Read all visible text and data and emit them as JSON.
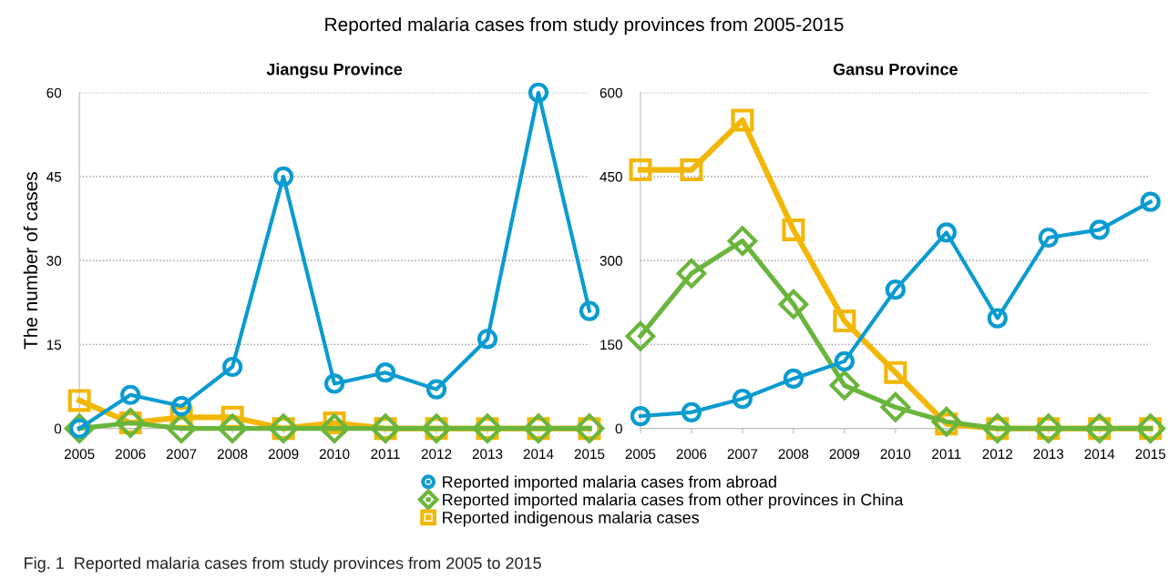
{
  "chart_data": [
    {
      "type": "line",
      "title": "Jiangsu Province",
      "ylabel": "The number of cases",
      "categories": [
        "2005",
        "2006",
        "2007",
        "2008",
        "2009",
        "2010",
        "2011",
        "2012",
        "2013",
        "2014",
        "2015"
      ],
      "ylim": [
        0,
        60
      ],
      "yticks": [
        0,
        15,
        30,
        45,
        60
      ],
      "grid": "y",
      "legend": "bottom",
      "line_style": "solid",
      "annotations": [
        "Reported malaria cases from study provinces from 2005-2015",
        "Fig. 1  Reported malaria cases from study provinces from 2005 to 2015"
      ],
      "series": [
        {
          "name": "Reported imported malaria cases from abroad",
          "color": "#0a9bd0",
          "marker": "circle",
          "values": [
            0,
            6,
            4,
            11,
            45,
            8,
            10,
            7,
            16,
            60,
            21
          ]
        },
        {
          "name": "Reported imported malaria cases from other provinces in China",
          "color": "#6ab53c",
          "marker": "diamond",
          "values": [
            0,
            1,
            0,
            0,
            0,
            0,
            0,
            0,
            0,
            0,
            0
          ]
        },
        {
          "name": "Reported indigenous malaria cases",
          "color": "#f2b705",
          "marker": "square",
          "values": [
            5,
            1,
            2,
            2,
            0,
            1,
            0,
            0,
            0,
            0,
            0
          ]
        }
      ]
    },
    {
      "type": "line",
      "title": "Gansu Province",
      "categories": [
        "2005",
        "2006",
        "2007",
        "2008",
        "2009",
        "2010",
        "2011",
        "2012",
        "2013",
        "2014",
        "2015"
      ],
      "ylim": [
        0,
        600
      ],
      "yticks": [
        0,
        150,
        300,
        450,
        600
      ],
      "grid": "y",
      "legend": "bottom",
      "line_style": "solid",
      "series": [
        {
          "name": "Reported imported malaria cases from abroad",
          "color": "#0a9bd0",
          "marker": "circle",
          "values": [
            22,
            29,
            53,
            89,
            120,
            248,
            350,
            197,
            341,
            355,
            405
          ]
        },
        {
          "name": "Reported imported malaria cases from other provinces in China",
          "color": "#6ab53c",
          "marker": "diamond",
          "values": [
            165,
            277,
            335,
            222,
            77,
            38,
            12,
            0,
            0,
            0,
            0
          ]
        },
        {
          "name": "Reported indigenous malaria cases",
          "color": "#f2b705",
          "marker": "square",
          "values": [
            462,
            462,
            551,
            355,
            192,
            100,
            8,
            0,
            0,
            0,
            0
          ]
        }
      ]
    }
  ]
}
